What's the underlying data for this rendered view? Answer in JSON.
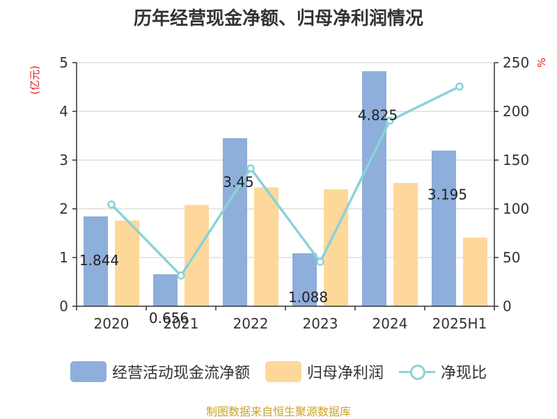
{
  "title": "历年经营现金净额、归母净利润情况",
  "source": "制图数据来自恒生聚源数据库",
  "chart_data": {
    "type": "bar",
    "categories": [
      "2020",
      "2021",
      "2022",
      "2023",
      "2024",
      "2025H1"
    ],
    "series": [
      {
        "name": "经营活动现金流净额",
        "type": "bar",
        "axis": "left",
        "color": "#8eaedb",
        "values": [
          1.844,
          0.656,
          3.45,
          1.088,
          4.825,
          3.195
        ],
        "labels": [
          "1.844",
          "0.656",
          "3.45",
          "1.088",
          "4.825",
          "3.195"
        ]
      },
      {
        "name": "归母净利润",
        "type": "bar",
        "axis": "left",
        "color": "#fdd89a",
        "values": [
          1.76,
          2.08,
          2.44,
          2.4,
          2.53,
          1.41
        ]
      },
      {
        "name": "净现比",
        "type": "line",
        "axis": "right",
        "color": "#88d3d8",
        "values": [
          104.5,
          31.5,
          141.5,
          45.5,
          190.5,
          225.5
        ]
      }
    ],
    "y_left": {
      "unit": "(亿元)",
      "ylim": [
        0,
        5
      ],
      "ticks": [
        "0",
        "1",
        "2",
        "3",
        "4",
        "5"
      ]
    },
    "y_right": {
      "unit": "%",
      "ylim": [
        0,
        250
      ],
      "ticks": [
        "0",
        "50",
        "100",
        "150",
        "200",
        "250"
      ]
    },
    "grid": true,
    "legend_position": "bottom"
  }
}
